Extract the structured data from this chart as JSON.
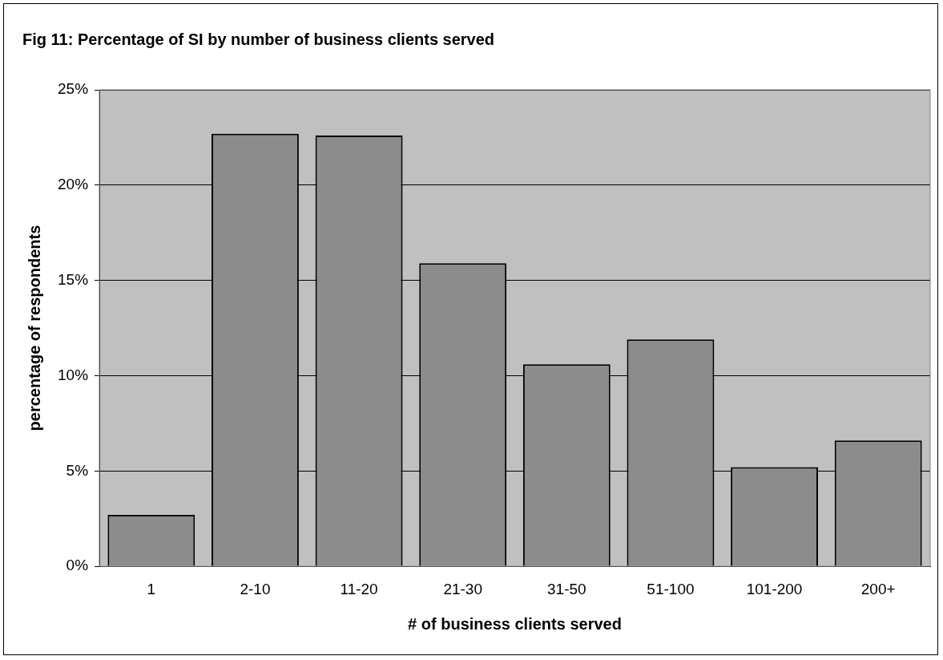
{
  "chart_data": {
    "type": "bar",
    "title": "Fig 11: Percentage of SI by number of business clients served",
    "xlabel": "# of business clients served",
    "ylabel": "percentage of respondents",
    "categories": [
      "1",
      "2-10",
      "11-20",
      "21-30",
      "31-50",
      "51-100",
      "101-200",
      "200+"
    ],
    "values": [
      2.7,
      22.7,
      22.6,
      15.9,
      10.6,
      11.9,
      5.2,
      6.6
    ],
    "color": "#8c8c8c",
    "ylim": [
      0,
      25
    ],
    "yticks": [
      {
        "value": 0,
        "label": "0%"
      },
      {
        "value": 5,
        "label": "5%"
      },
      {
        "value": 10,
        "label": "10%"
      },
      {
        "value": 15,
        "label": "15%"
      },
      {
        "value": 20,
        "label": "20%"
      },
      {
        "value": 25,
        "label": "25%"
      }
    ],
    "grid": "y",
    "legend": false
  }
}
